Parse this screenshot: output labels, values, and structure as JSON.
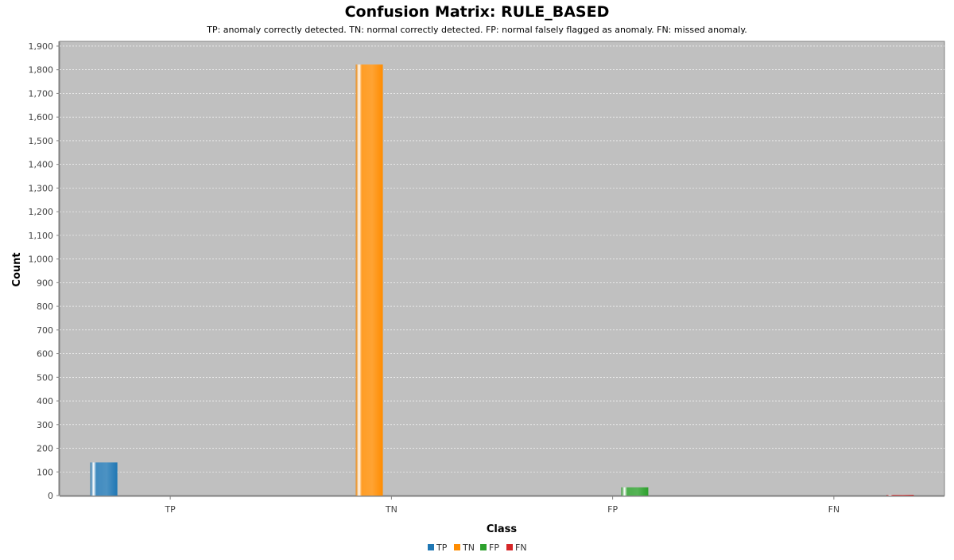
{
  "chart_data": {
    "type": "bar",
    "title": "Confusion Matrix: RULE_BASED",
    "subtitle": "TP: anomaly correctly detected. TN: normal correctly detected. FP: normal falsely flagged as anomaly. FN: missed anomaly.",
    "xlabel": "Class",
    "ylabel": "Count",
    "categories": [
      "TP",
      "TN",
      "FP",
      "FN"
    ],
    "series": [
      {
        "name": "TP",
        "color": "#1f77b4",
        "values": [
          140,
          null,
          null,
          null
        ]
      },
      {
        "name": "TN",
        "color": "#ff8c00",
        "values": [
          null,
          1822,
          null,
          null
        ]
      },
      {
        "name": "FP",
        "color": "#2ca02c",
        "values": [
          null,
          null,
          35,
          null
        ]
      },
      {
        "name": "FN",
        "color": "#d62728",
        "values": [
          null,
          null,
          null,
          3
        ]
      }
    ],
    "ylim": [
      0,
      1920
    ],
    "yticks": [
      0,
      100,
      200,
      300,
      400,
      500,
      600,
      700,
      800,
      900,
      1000,
      1100,
      1200,
      1300,
      1400,
      1500,
      1600,
      1700,
      1800,
      1900
    ],
    "grid": true,
    "legend": "bottom",
    "plot_background": "#c0c0c0"
  }
}
